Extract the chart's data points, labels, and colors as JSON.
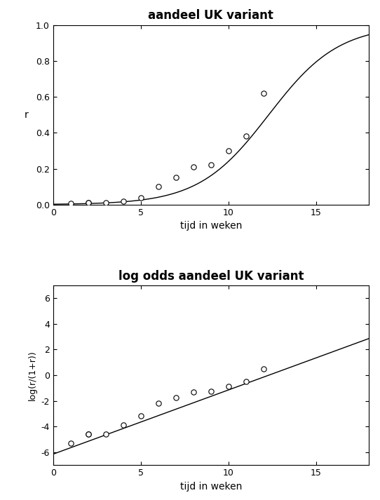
{
  "title1": "aandeel UK variant",
  "title2": "log odds aandeel UK variant",
  "xlabel": "tijd in weken",
  "ylabel1": "r",
  "ylabel2": "log(r/(1+r))",
  "x_data": [
    1,
    2,
    2,
    3,
    4,
    5,
    6,
    7,
    8,
    9,
    10,
    11,
    12
  ],
  "y_data": [
    0.005,
    0.01,
    0.01,
    0.01,
    0.02,
    0.04,
    0.1,
    0.15,
    0.21,
    0.22,
    0.3,
    0.38,
    0.62
  ],
  "logit_intercept": -6.15,
  "logit_slope": 0.5,
  "xlim1": [
    0,
    18
  ],
  "ylim1": [
    0.0,
    1.0
  ],
  "xlim2": [
    0,
    18
  ],
  "ylim2": [
    -7.0,
    7.0
  ],
  "yticks1": [
    0.0,
    0.2,
    0.4,
    0.6,
    0.8,
    1.0
  ],
  "yticks2": [
    -6,
    -4,
    -2,
    0,
    2,
    4,
    6
  ],
  "xticks": [
    0,
    5,
    10,
    15
  ],
  "bg_color": "#ffffff",
  "line_color": "#000000",
  "point_color": "#ffffff",
  "point_edge_color": "#000000",
  "figsize": [
    5.42,
    7.13
  ],
  "dpi": 100
}
